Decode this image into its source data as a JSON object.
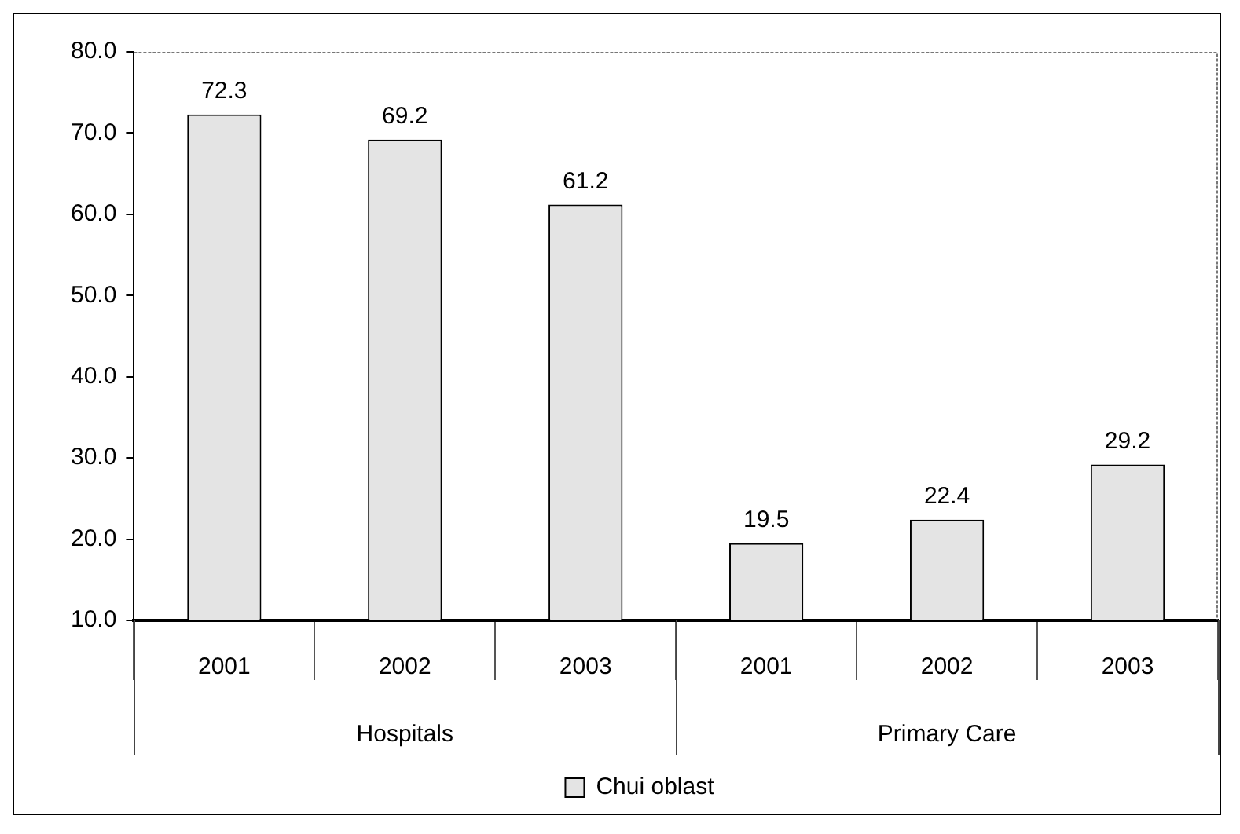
{
  "chart_data": {
    "type": "bar",
    "categories": [
      "2001",
      "2002",
      "2003",
      "2001",
      "2002",
      "2003"
    ],
    "series": [
      {
        "name": "Chui oblast",
        "color": "#e4e4e4",
        "values": [
          72.3,
          69.2,
          61.2,
          19.5,
          22.4,
          29.2
        ]
      }
    ],
    "ylim": [
      10,
      80
    ],
    "yticks": [
      {
        "value": 10,
        "label": "10.0"
      },
      {
        "value": 20,
        "label": "20.0"
      },
      {
        "value": 30,
        "label": "30.0"
      },
      {
        "value": 40,
        "label": "40.0"
      },
      {
        "value": 50,
        "label": "50.0"
      },
      {
        "value": 60,
        "label": "60.0"
      },
      {
        "value": 70,
        "label": "70.0"
      },
      {
        "value": 80,
        "label": "80.0"
      }
    ],
    "grid": false,
    "legend": "bottom",
    "data_labels": true,
    "annotations": [
      "Hospitals",
      "Primary Care"
    ]
  }
}
